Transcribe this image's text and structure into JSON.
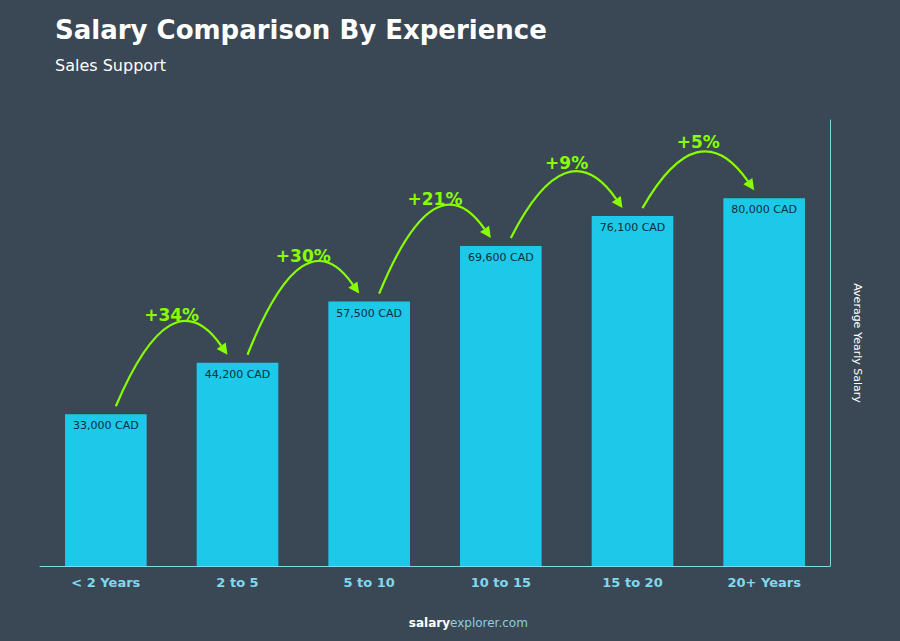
{
  "chart_data": {
    "type": "bar",
    "title": "Salary Comparison By Experience",
    "subtitle": "Sales Support",
    "ylabel": "Average Yearly Salary",
    "footer": [
      "salary",
      "explorer.com"
    ],
    "categories": [
      "< 2 Years",
      "2 to 5",
      "5 to 10",
      "10 to 15",
      "15 to 20",
      "20+ Years"
    ],
    "values": [
      33000,
      44200,
      57500,
      69600,
      76100,
      80000
    ],
    "value_labels": [
      "33,000 CAD",
      "44,200 CAD",
      "57,500 CAD",
      "69,600 CAD",
      "76,100 CAD",
      "80,000 CAD"
    ],
    "data_labels": true,
    "color": "#1EC8E8",
    "annotations": [
      {
        "text": "+34%",
        "color": "#88FF00"
      },
      {
        "text": "+30%",
        "color": "#88FF00"
      },
      {
        "text": "+21%",
        "color": "#88FF00"
      },
      {
        "text": "+9%",
        "color": "#88FF00"
      },
      {
        "text": "+5%",
        "color": "#88FF00"
      }
    ],
    "ylim": [
      0,
      97000
    ],
    "grid": false,
    "tick_labels": "x"
  }
}
